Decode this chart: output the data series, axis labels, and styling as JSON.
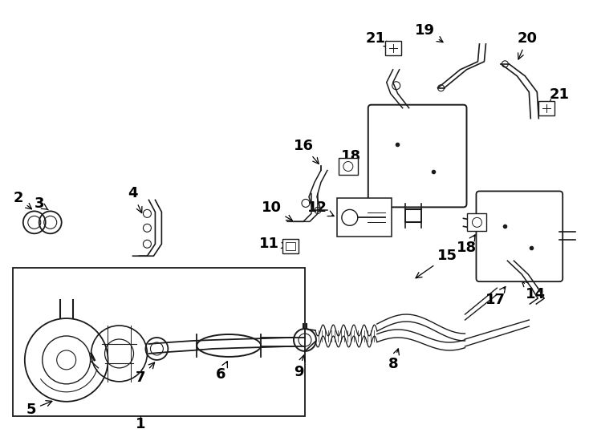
{
  "bg_color": "#ffffff",
  "line_color": "#1a1a1a",
  "fig_width": 7.34,
  "fig_height": 5.4,
  "dpi": 100,
  "lw": 1.1
}
